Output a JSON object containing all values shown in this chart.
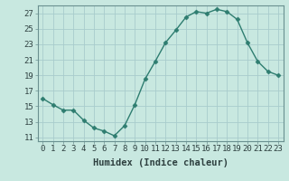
{
  "x": [
    0,
    1,
    2,
    3,
    4,
    5,
    6,
    7,
    8,
    9,
    10,
    11,
    12,
    13,
    14,
    15,
    16,
    17,
    18,
    19,
    20,
    21,
    22,
    23
  ],
  "y": [
    16.0,
    15.2,
    14.5,
    14.5,
    13.2,
    12.2,
    11.8,
    11.2,
    12.5,
    15.2,
    18.5,
    20.8,
    23.2,
    24.8,
    26.5,
    27.2,
    27.0,
    27.5,
    27.2,
    26.2,
    23.2,
    20.8,
    19.5,
    19.0
  ],
  "line_color": "#2e7d70",
  "marker": "D",
  "marker_size": 2.5,
  "bg_color": "#c8e8e0",
  "grid_color": "#a8cccc",
  "grid_color_minor": "#b8d8d8",
  "xlabel": "Humidex (Indice chaleur)",
  "xlim": [
    -0.5,
    23.5
  ],
  "ylim": [
    10.5,
    28.0
  ],
  "yticks": [
    11,
    13,
    15,
    17,
    19,
    21,
    23,
    25,
    27
  ],
  "xticks": [
    0,
    1,
    2,
    3,
    4,
    5,
    6,
    7,
    8,
    9,
    10,
    11,
    12,
    13,
    14,
    15,
    16,
    17,
    18,
    19,
    20,
    21,
    22,
    23
  ],
  "tick_label_fontsize": 6.5,
  "xlabel_fontsize": 7.5,
  "line_width": 1.0
}
